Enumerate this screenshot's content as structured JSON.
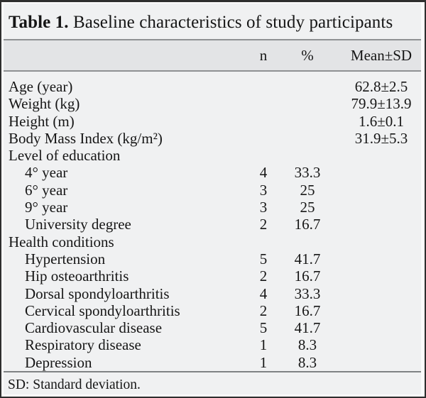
{
  "title": {
    "label": "Table 1.",
    "text": " Baseline characteristics of study participants"
  },
  "columns": {
    "label": "",
    "n": "n",
    "pct": "%",
    "mean": "Mean±SD"
  },
  "rows": [
    {
      "label": "Age (year)",
      "indent": false,
      "n": "",
      "pct": "",
      "mean": "62.8±2.5"
    },
    {
      "label": "Weight (kg)",
      "indent": false,
      "n": "",
      "pct": "",
      "mean": "79.9±13.9"
    },
    {
      "label": "Height (m)",
      "indent": false,
      "n": "",
      "pct": "",
      "mean": "1.6±0.1"
    },
    {
      "label": "Body Mass Index (kg/m²)",
      "indent": false,
      "n": "",
      "pct": "",
      "mean": "31.9±5.3"
    },
    {
      "label": "Level of education",
      "indent": false,
      "n": "",
      "pct": "",
      "mean": ""
    },
    {
      "label": "4° year",
      "indent": true,
      "n": "4",
      "pct": "33.3",
      "mean": ""
    },
    {
      "label": "6° year",
      "indent": true,
      "n": "3",
      "pct": "25",
      "mean": ""
    },
    {
      "label": "9° year",
      "indent": true,
      "n": "3",
      "pct": "25",
      "mean": ""
    },
    {
      "label": "University degree",
      "indent": true,
      "n": "2",
      "pct": "16.7",
      "mean": ""
    },
    {
      "label": "Health conditions",
      "indent": false,
      "n": "",
      "pct": "",
      "mean": ""
    },
    {
      "label": "Hypertension",
      "indent": true,
      "n": "5",
      "pct": "41.7",
      "mean": ""
    },
    {
      "label": "Hip osteoarthritis",
      "indent": true,
      "n": "2",
      "pct": "16.7",
      "mean": ""
    },
    {
      "label": "Dorsal spondyloarthritis",
      "indent": true,
      "n": "4",
      "pct": "33.3",
      "mean": ""
    },
    {
      "label": "Cervical spondyloarthritis",
      "indent": true,
      "n": "2",
      "pct": "16.7",
      "mean": ""
    },
    {
      "label": "Cardiovascular disease",
      "indent": true,
      "n": "5",
      "pct": "41.7",
      "mean": ""
    },
    {
      "label": "Respiratory disease",
      "indent": true,
      "n": "1",
      "pct": "8.3",
      "mean": ""
    },
    {
      "label": "Depression",
      "indent": true,
      "n": "1",
      "pct": "8.3",
      "mean": ""
    }
  ],
  "footnote": "SD: Standard deviation.",
  "colors": {
    "frame_border": "#2e2e2e",
    "table_background": "#f0f1f2",
    "header_band": "#e3e4e6",
    "rule": "#8f9193",
    "text": "#161616"
  }
}
